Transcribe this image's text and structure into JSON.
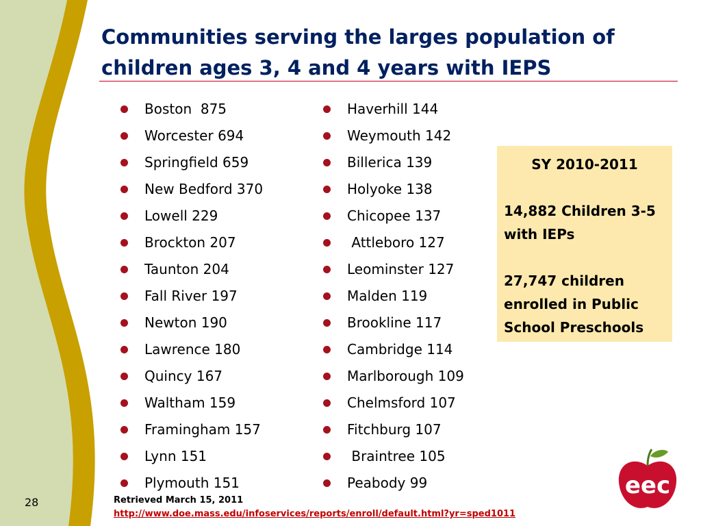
{
  "slide": {
    "title": "Communities serving the larges population of children ages 3, 4 and 4 years with IEPS",
    "slide_number": "28"
  },
  "communities_left": [
    "Boston  875",
    "Worcester 694",
    "Springfield 659",
    "New Bedford 370",
    "Lowell 229",
    "Brockton 207",
    "Taunton 204",
    "Fall River 197",
    "Newton 190",
    "Lawrence 180",
    "Quincy 167",
    "Waltham 159",
    "Framingham 157",
    "Lynn 151",
    "Plymouth 151"
  ],
  "communities_right": [
    "Haverhill 144",
    "Weymouth 142",
    "Billerica 139",
    "Holyoke 138",
    "Chicopee 137",
    " Attleboro 127",
    "Leominster 127",
    "Malden 119",
    "Brookline 117",
    "Cambridge 114",
    "Marlborough 109",
    "Chelmsford 107",
    "Fitchburg 107",
    " Braintree 105",
    "Peabody 99"
  ],
  "stats_box": {
    "heading": "SY 2010-2011",
    "stat1_line1": "14,882 Children 3-5",
    "stat1_line2": "with IEPs",
    "stat2_line1": "27,747 children",
    "stat2_line2": "enrolled in Public",
    "stat2_line3": "School Preschools"
  },
  "source": {
    "retrieved": "Retrieved March 15, 2011",
    "url": "http://www.doe.mass.edu/infoservices/reports/enroll/default.html?yr=sped1011"
  },
  "logo": {
    "text": "eec",
    "icon": "apple-icon"
  },
  "colors": {
    "title": "#002060",
    "accent_red": "#c0001f",
    "bullet": "#a3121e",
    "stat_box_bg": "#fde9ad",
    "stripe_green": "#d2dcb0",
    "stripe_gold": "#c8a000"
  }
}
